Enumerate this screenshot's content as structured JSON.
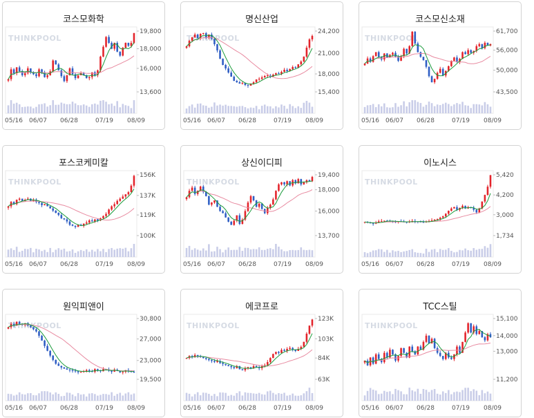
{
  "brand": {
    "watermark": "THINKPOOL"
  },
  "colors": {
    "up": "#e3242b",
    "down": "#2f5ec4",
    "ma_short": "#1a9b3b",
    "ma_long": "#e88aa0",
    "volume": "#c9cde8"
  },
  "x_ticks": [
    "05/16",
    "06/07",
    "06/28",
    "07/19",
    "08/09"
  ],
  "chart_data": [
    {
      "type": "candlestick",
      "title": "코스모화학",
      "y_ticks": [
        "19,800",
        "18,000",
        "16,000",
        "13,600"
      ],
      "y_tick_values": [
        19800,
        18000,
        16000,
        13600
      ],
      "ylim": [
        13600,
        19800
      ],
      "path": [
        14900,
        15900,
        15500,
        16100,
        15700,
        15300,
        15500,
        16000,
        15600,
        15400,
        15200,
        15900,
        15600,
        15100,
        15300,
        15700,
        16800,
        16400,
        15800,
        15200,
        14700,
        15300,
        16000,
        15400,
        15000,
        15300,
        15500,
        15300,
        15000,
        15100,
        15600,
        15300,
        15800,
        17200,
        18200,
        19200,
        18600,
        18000,
        18600,
        17700,
        17300,
        18100,
        18600,
        18300,
        18600,
        19600
      ]
    },
    {
      "type": "candlestick",
      "title": "명신산업",
      "y_ticks": [
        "24,200",
        "21,000",
        "18,000",
        "15,400"
      ],
      "y_tick_values": [
        24200,
        21000,
        18000,
        15400
      ],
      "ylim": [
        15400,
        24200
      ],
      "path": [
        22000,
        22800,
        23300,
        23700,
        23200,
        23800,
        23900,
        23300,
        23700,
        23100,
        22300,
        21400,
        20200,
        19300,
        18800,
        18200,
        17600,
        17000,
        16800,
        16600,
        16700,
        16400,
        16300,
        16600,
        16800,
        17200,
        17300,
        17500,
        17700,
        17800,
        17600,
        17900,
        18100,
        18000,
        18300,
        18600,
        18400,
        18700,
        19000,
        18900,
        19400,
        19800,
        20500,
        21800,
        23000,
        23500
      ]
    },
    {
      "type": "candlestick",
      "title": "코스모신소재",
      "y_ticks": [
        "61,700",
        "56,000",
        "50,000",
        "43,500"
      ],
      "y_tick_values": [
        61700,
        56000,
        50000,
        43500
      ],
      "ylim": [
        43500,
        61700
      ],
      "path": [
        52000,
        53500,
        52500,
        54200,
        55400,
        54000,
        53200,
        55000,
        53800,
        54600,
        55200,
        54000,
        52800,
        54200,
        56400,
        55000,
        57200,
        61500,
        58000,
        55400,
        54000,
        53000,
        51000,
        48200,
        46400,
        47400,
        49200,
        50400,
        48400,
        49800,
        51200,
        52800,
        53800,
        52400,
        53400,
        55400,
        54800,
        56000,
        55200,
        55800,
        57200,
        57800,
        56600,
        58200,
        57400,
        57800
      ]
    },
    {
      "type": "candlestick",
      "title": "포스코케미칼",
      "y_ticks": [
        "156K",
        "137K",
        "119K",
        "100K"
      ],
      "y_tick_values": [
        156,
        137,
        119,
        100
      ],
      "ylim": [
        100,
        156
      ],
      "path": [
        127,
        131,
        129,
        133,
        134,
        132,
        133,
        134,
        132,
        133,
        131,
        130,
        128,
        129,
        127,
        125,
        123,
        121,
        119,
        116,
        115,
        113,
        110,
        109,
        108,
        110,
        109,
        111,
        112,
        114,
        113,
        115,
        114,
        116,
        118,
        120,
        124,
        127,
        129,
        132,
        134,
        136,
        138,
        140,
        146,
        155
      ]
    },
    {
      "type": "candlestick",
      "title": "상신이디피",
      "y_ticks": [
        "19,400",
        "18,000",
        "16,000",
        "13,700"
      ],
      "y_tick_values": [
        19400,
        18000,
        16000,
        13700
      ],
      "ylim": [
        13700,
        19400
      ],
      "path": [
        17300,
        17900,
        18200,
        17600,
        17900,
        18300,
        17800,
        17400,
        16600,
        16800,
        17000,
        16400,
        16000,
        15800,
        15400,
        15000,
        14700,
        15100,
        15600,
        14800,
        15200,
        16000,
        16800,
        17400,
        17000,
        16400,
        16700,
        16200,
        15800,
        16300,
        16600,
        17100,
        17900,
        18500,
        18700,
        18500,
        18800,
        18400,
        18900,
        18600,
        19000,
        18500,
        18700,
        18900,
        18800,
        19200
      ]
    },
    {
      "type": "candlestick",
      "title": "이노시스",
      "y_ticks": [
        "5,420",
        "4,200",
        "3,000",
        "1,734"
      ],
      "y_tick_values": [
        5420,
        4200,
        3000,
        1734
      ],
      "ylim": [
        1734,
        5420
      ],
      "path": [
        2560,
        2520,
        2480,
        2460,
        2520,
        2600,
        2620,
        2640,
        2620,
        2600,
        2580,
        2560,
        2600,
        2580,
        2560,
        2540,
        2580,
        2620,
        2600,
        2580,
        2560,
        2540,
        2580,
        2620,
        2660,
        2700,
        2740,
        2820,
        2900,
        3060,
        3240,
        3380,
        3460,
        3300,
        3420,
        3540,
        3380,
        3460,
        3420,
        3300,
        3140,
        3380,
        3800,
        4200,
        4700,
        5400
      ]
    },
    {
      "type": "candlestick",
      "title": "원익피앤이",
      "y_ticks": [
        "30,800",
        "27,000",
        "23,000",
        "19,500"
      ],
      "y_tick_values": [
        30800,
        27000,
        23000,
        19500
      ],
      "ylim": [
        19500,
        30800
      ],
      "path": [
        29200,
        29800,
        29500,
        30200,
        29800,
        29600,
        29900,
        29500,
        29200,
        28800,
        28400,
        27600,
        26700,
        25700,
        24800,
        23900,
        23100,
        22400,
        22000,
        21700,
        21500,
        21300,
        21200,
        21100,
        21000,
        20800,
        20900,
        21000,
        21200,
        21000,
        20900,
        21400,
        21200,
        21000,
        21400,
        21300,
        21100,
        20900,
        21300,
        21100,
        20800,
        20900,
        21200,
        21000,
        20900,
        20800
      ]
    },
    {
      "type": "candlestick",
      "title": "에코프로",
      "y_ticks": [
        "123K",
        "103K",
        "84K",
        "63K"
      ],
      "y_tick_values": [
        123,
        103,
        84,
        63
      ],
      "ylim": [
        63,
        123
      ],
      "path": [
        84,
        86,
        85,
        87,
        86,
        85,
        84,
        83,
        82,
        81,
        80,
        81,
        79,
        78,
        77,
        76,
        75,
        74,
        76,
        73,
        72,
        74,
        75,
        74,
        76,
        75,
        74,
        76,
        77,
        80,
        84,
        88,
        90,
        89,
        92,
        91,
        93,
        94,
        92,
        91,
        93,
        95,
        100,
        108,
        116,
        122
      ]
    },
    {
      "type": "candlestick",
      "title": "TCC스틸",
      "y_ticks": [
        "15,100",
        "14,000",
        "13,000",
        "11,200"
      ],
      "y_tick_values": [
        15100,
        14000,
        13000,
        11200
      ],
      "ylim": [
        11200,
        15100
      ],
      "path": [
        12400,
        12100,
        12600,
        12200,
        12800,
        12500,
        12300,
        12900,
        12600,
        13100,
        12800,
        12400,
        12700,
        13200,
        12900,
        12600,
        13300,
        13000,
        12800,
        13300,
        13100,
        13600,
        14000,
        13500,
        13800,
        13200,
        12900,
        12700,
        12500,
        12900,
        12600,
        12500,
        12800,
        13300,
        12900,
        13600,
        14200,
        14800,
        14200,
        14600,
        14100,
        14300,
        13900,
        13700,
        14100,
        13900
      ]
    }
  ]
}
